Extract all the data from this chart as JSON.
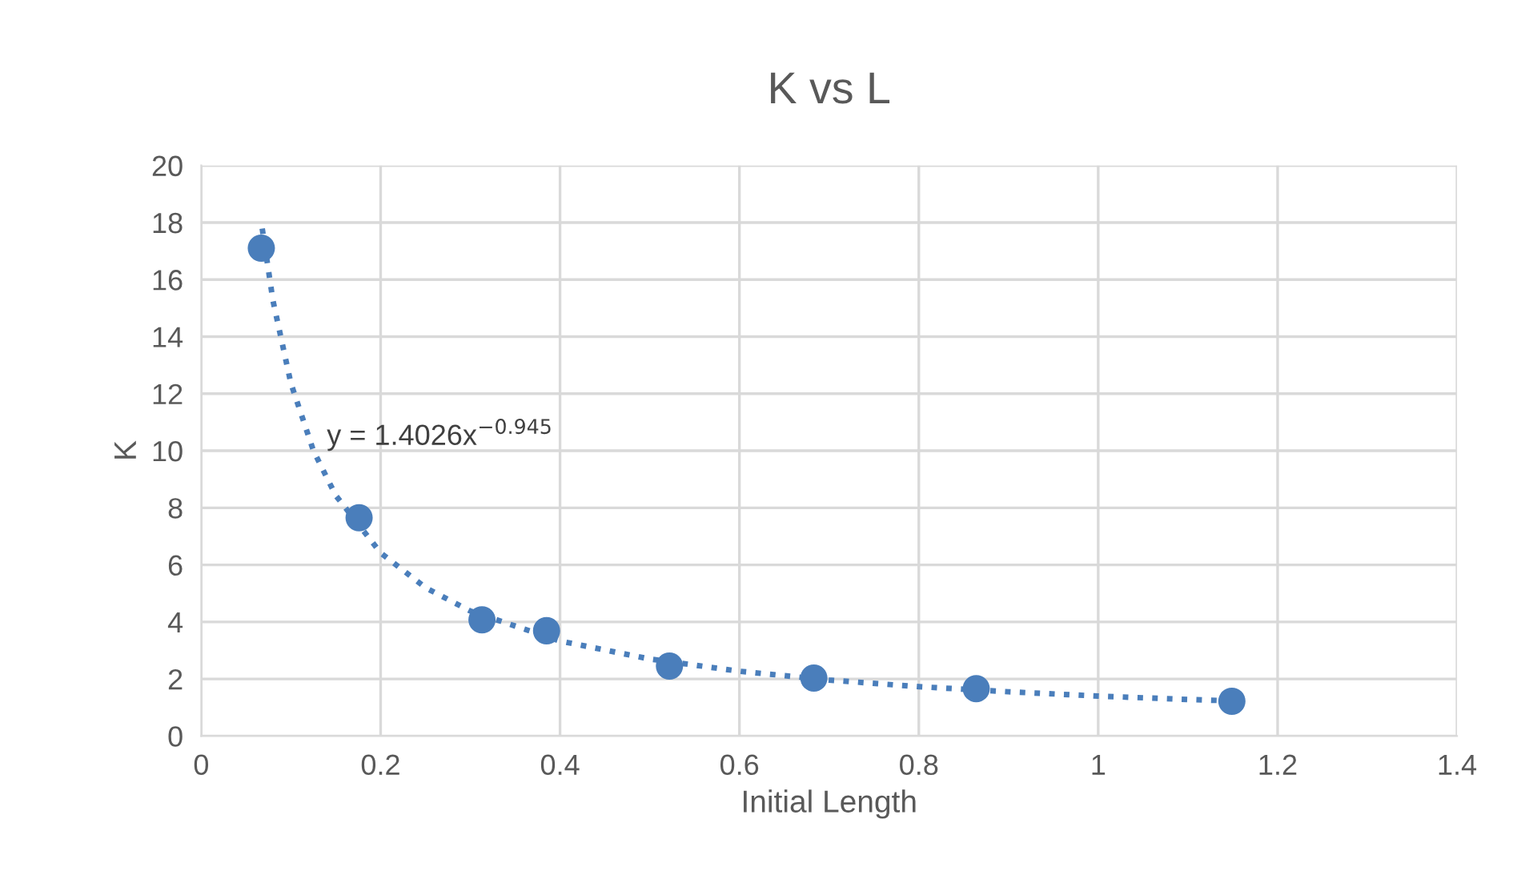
{
  "chart_data": {
    "type": "scatter",
    "title": "K vs L",
    "xlabel": "Initial Length",
    "ylabel": "K",
    "series": [
      {
        "color": "#4a7ebb",
        "marker": "circle",
        "x": [
          0.067,
          0.176,
          0.313,
          0.385,
          0.522,
          0.683,
          0.864,
          1.149
        ],
        "values": [
          17.1,
          7.65,
          4.07,
          3.69,
          2.45,
          2.03,
          1.66,
          1.22
        ]
      },
      {
        "type": "line",
        "color": "#4a7ebb",
        "marker": "none",
        "line_style": "dotted",
        "x": [
          0.068,
          0.08,
          0.1,
          0.125,
          0.15,
          0.2,
          0.25,
          0.3,
          0.4,
          0.5,
          0.6,
          0.7,
          0.8,
          0.9,
          1.0,
          1.1,
          1.15
        ],
        "values": [
          17.79,
          15.26,
          12.36,
          10.01,
          8.43,
          6.42,
          5.2,
          4.38,
          3.33,
          2.7,
          2.27,
          1.96,
          1.73,
          1.55,
          1.4,
          1.28,
          1.23
        ]
      }
    ],
    "annotations": [
      "y = 1.4026x$^{−0.945}$"
    ],
    "xlim": [
      0,
      1.4
    ],
    "xticks": [
      0,
      0.2,
      0.4,
      0.6,
      0.8,
      1,
      1.2,
      1.4
    ],
    "ylim": [
      0,
      20
    ],
    "yticks": [
      0,
      2,
      4,
      6,
      8,
      10,
      12,
      14,
      16,
      18,
      20
    ],
    "grid": true,
    "legend": false
  }
}
